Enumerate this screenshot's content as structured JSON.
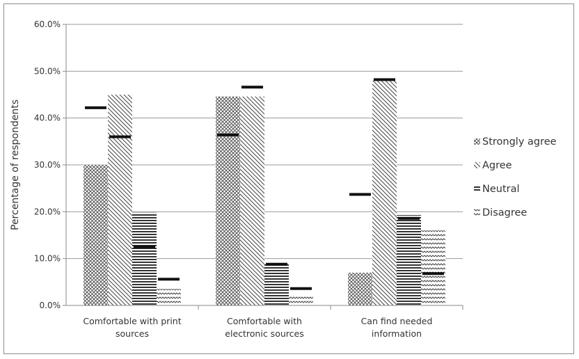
{
  "chart_data": {
    "type": "bar",
    "ylabel": "Percentage of respondents",
    "xlabel": "",
    "ylim": [
      0,
      60
    ],
    "yticks": [
      "0.0%",
      "10.0%",
      "20.0%",
      "30.0%",
      "40.0%",
      "50.0%",
      "60.0%"
    ],
    "grid": true,
    "legend_position": "right",
    "categories": [
      [
        "Comfortable with print",
        "sources"
      ],
      [
        "Comfortable with",
        "electronic sources"
      ],
      [
        "Can find needed",
        "information"
      ]
    ],
    "series": [
      {
        "name": "Strongly agree",
        "pattern": "crosshatch",
        "values": [
          30.0,
          44.6,
          7.0
        ],
        "markers": [
          42.2,
          36.4,
          23.7
        ]
      },
      {
        "name": "Agree",
        "pattern": "diagonal",
        "values": [
          45.0,
          44.6,
          48.0
        ],
        "markers": [
          36.0,
          46.6,
          48.2
        ]
      },
      {
        "name": "Neutral",
        "pattern": "horizontal",
        "values": [
          19.8,
          8.8,
          19.3
        ],
        "markers": [
          12.5,
          8.8,
          18.6
        ]
      },
      {
        "name": "Disagree",
        "pattern": "zigzag",
        "values": [
          3.5,
          2.0,
          16.0
        ],
        "markers": [
          5.6,
          3.6,
          6.8
        ]
      }
    ]
  }
}
